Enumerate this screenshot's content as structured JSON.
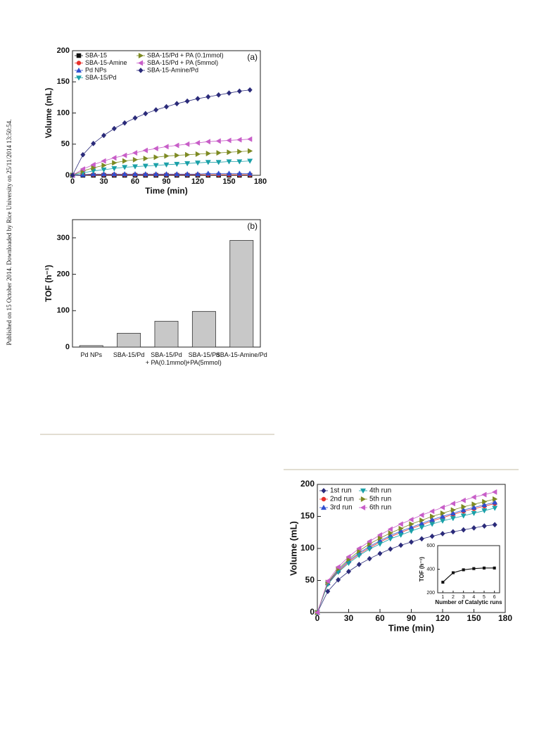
{
  "side_note": "Published on 15 October 2014. Downloaded by Rice University on 25/11/2014 13:50:54.",
  "chart_data": [
    {
      "type": "line",
      "annotation": "(a)",
      "x_label": "Time (min)",
      "y_label": "Volume (mL)",
      "xlim": [
        0,
        180
      ],
      "xticks": [
        0,
        30,
        60,
        90,
        120,
        150,
        180
      ],
      "ylim": [
        0,
        200
      ],
      "yticks": [
        0,
        50,
        100,
        150,
        200
      ],
      "legend": "upper left",
      "x": [
        0,
        10,
        20,
        30,
        40,
        50,
        60,
        70,
        80,
        90,
        100,
        110,
        120,
        130,
        140,
        150,
        160,
        170
      ],
      "series": [
        {
          "name": "SBA-15",
          "color": "#111111",
          "marker": "square",
          "values": [
            0,
            0,
            0,
            0,
            0,
            0,
            0,
            0,
            0,
            0,
            0,
            0,
            0,
            0,
            0,
            0,
            0,
            0
          ]
        },
        {
          "name": "SBA-15-Amine",
          "color": "#e8302a",
          "marker": "circle",
          "values": [
            0,
            1,
            1,
            1,
            1,
            1,
            1,
            1,
            1,
            1,
            1,
            1,
            1,
            1,
            1,
            1,
            1,
            1
          ]
        },
        {
          "name": "Pd NPs",
          "color": "#2f4fd0",
          "marker": "triangle-up",
          "values": [
            0,
            1,
            2,
            2,
            2,
            2,
            2,
            2,
            2,
            2,
            2,
            2,
            2,
            3,
            3,
            3,
            3,
            3
          ]
        },
        {
          "name": "SBA-15/Pd",
          "color": "#1aa0a8",
          "marker": "triangle-down",
          "values": [
            0,
            4,
            7,
            9,
            11,
            13,
            14,
            15,
            16,
            17,
            18,
            19,
            20,
            21,
            21,
            22,
            22,
            23
          ]
        },
        {
          "name": "SBA-15/Pd + PA (0.1mmol)",
          "color": "#7d8a22",
          "marker": "triangle-right",
          "values": [
            0,
            7,
            12,
            16,
            20,
            23,
            25,
            27,
            29,
            31,
            32,
            33,
            34,
            35,
            36,
            37,
            38,
            39
          ]
        },
        {
          "name": "SBA-15/Pd + PA (5mmol)",
          "color": "#c85ec8",
          "marker": "triangle-left",
          "values": [
            0,
            10,
            17,
            23,
            28,
            32,
            36,
            40,
            43,
            46,
            48,
            50,
            52,
            54,
            55,
            56,
            57,
            58
          ]
        },
        {
          "name": "SBA-15-Amine/Pd",
          "color": "#2b2b7a",
          "marker": "diamond",
          "values": [
            0,
            33,
            51,
            64,
            75,
            84,
            92,
            99,
            105,
            110,
            115,
            119,
            123,
            126,
            129,
            132,
            135,
            137
          ]
        }
      ]
    },
    {
      "type": "bar",
      "annotation": "(b)",
      "y_label": "TOF (h⁻¹)",
      "color": "#c8c8c8",
      "categories": [
        "Pd NPs",
        "SBA-15/Pd",
        "SBA-15/Pd\n+ PA(0.1mmol)",
        "SBA-15/Pd\n+PA(5mmol)",
        "SBA-15-Amine/Pd"
      ],
      "values": [
        4,
        38,
        71,
        98,
        293
      ],
      "ylim": [
        0,
        350
      ],
      "yticks": [
        0,
        100,
        200,
        300
      ]
    },
    {
      "type": "line",
      "x_label": "Time (min)",
      "y_label": "Volume (mL)",
      "xlim": [
        0,
        180
      ],
      "xticks": [
        0,
        30,
        60,
        90,
        120,
        150,
        180
      ],
      "ylim": [
        0,
        200
      ],
      "yticks": [
        0,
        50,
        100,
        150,
        200
      ],
      "legend": "upper left",
      "x": [
        0,
        10,
        20,
        30,
        40,
        50,
        60,
        70,
        80,
        90,
        100,
        110,
        120,
        130,
        140,
        150,
        160,
        170
      ],
      "series": [
        {
          "name": "1st run",
          "color": "#2b2b7a",
          "marker": "diamond",
          "values": [
            0,
            33,
            51,
            64,
            75,
            84,
            92,
            99,
            105,
            110,
            115,
            119,
            123,
            126,
            129,
            132,
            135,
            137
          ]
        },
        {
          "name": "2nd run",
          "color": "#e8302a",
          "marker": "circle",
          "values": [
            0,
            45,
            64,
            79,
            91,
            101,
            110,
            118,
            125,
            131,
            137,
            143,
            148,
            153,
            158,
            162,
            166,
            170
          ]
        },
        {
          "name": "3rd run",
          "color": "#2f4fd0",
          "marker": "triangle-up",
          "values": [
            0,
            46,
            66,
            81,
            93,
            103,
            112,
            120,
            127,
            133,
            139,
            145,
            150,
            155,
            160,
            164,
            168,
            172
          ]
        },
        {
          "name": "4th run",
          "color": "#1aa0a8",
          "marker": "triangle-down",
          "values": [
            0,
            44,
            63,
            77,
            89,
            99,
            107,
            115,
            121,
            127,
            133,
            138,
            143,
            147,
            151,
            155,
            159,
            163
          ]
        },
        {
          "name": "5th run",
          "color": "#7d8a22",
          "marker": "triangle-right",
          "values": [
            0,
            47,
            68,
            83,
            96,
            107,
            116,
            124,
            131,
            138,
            144,
            150,
            155,
            160,
            165,
            169,
            173,
            177
          ]
        },
        {
          "name": "6th run",
          "color": "#c85ec8",
          "marker": "triangle-left",
          "values": [
            0,
            49,
            71,
            87,
            100,
            111,
            121,
            130,
            138,
            145,
            152,
            158,
            164,
            170,
            175,
            180,
            184,
            188
          ]
        }
      ]
    },
    {
      "type": "line",
      "x_label": "Number of Catalytic runs",
      "y_label": "TOF (h⁻¹)",
      "xlim": [
        0.5,
        6.5
      ],
      "xticks": [
        1,
        2,
        3,
        4,
        5,
        6
      ],
      "ylim": [
        200,
        600
      ],
      "yticks": [
        200,
        400,
        600
      ],
      "x": [
        1,
        2,
        3,
        4,
        5,
        6
      ],
      "series": [
        {
          "color": "#111111",
          "marker": "square",
          "values": [
            290,
            370,
            395,
            405,
            410,
            410
          ]
        }
      ]
    }
  ]
}
